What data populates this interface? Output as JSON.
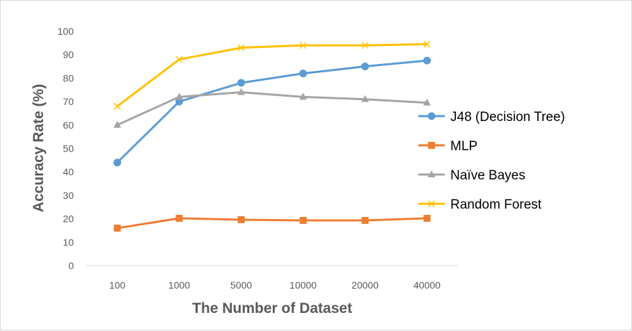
{
  "chart_data": {
    "type": "line",
    "title": "",
    "xlabel": "The Number of Dataset",
    "ylabel": "Accuracy Rate  (%)",
    "categories": [
      "100",
      "1000",
      "5000",
      "10000",
      "20000",
      "40000"
    ],
    "ylim": [
      0,
      100
    ],
    "yticks": [
      0,
      10,
      20,
      30,
      40,
      50,
      60,
      70,
      80,
      90,
      100
    ],
    "grid": false,
    "legend_position": "right",
    "series": [
      {
        "name": "J48 (Decision Tree)",
        "values": [
          44,
          70,
          78,
          82,
          85,
          87.5
        ],
        "color": "#5b9bd5",
        "marker": "circle"
      },
      {
        "name": "MLP",
        "values": [
          16,
          20.2,
          19.6,
          19.3,
          19.3,
          20.2
        ],
        "color": "#ed7d31",
        "marker": "square"
      },
      {
        "name": "Naïve Bayes",
        "values": [
          60,
          72,
          74,
          72,
          71,
          69.5
        ],
        "color": "#a5a5a5",
        "marker": "triangle"
      },
      {
        "name": "Random Forest",
        "values": [
          68,
          88,
          93,
          94,
          94,
          94.5
        ],
        "color": "#ffc000",
        "marker": "x"
      }
    ]
  }
}
